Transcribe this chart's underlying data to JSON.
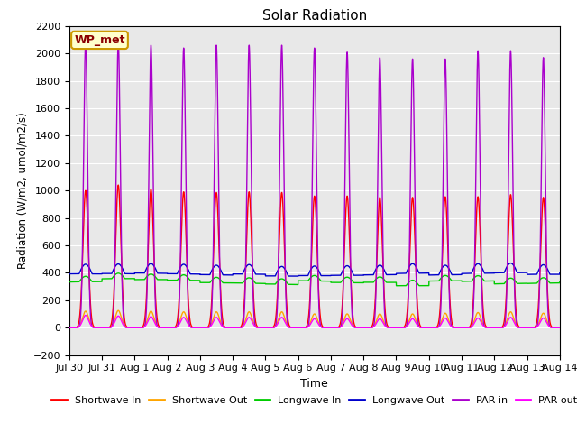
{
  "title": "Solar Radiation",
  "ylabel": "Radiation (W/m2, umol/m2/s)",
  "xlabel": "Time",
  "ylim": [
    -200,
    2200
  ],
  "yticks": [
    -200,
    0,
    200,
    400,
    600,
    800,
    1000,
    1200,
    1400,
    1600,
    1800,
    2000,
    2200
  ],
  "annotation": "WP_met",
  "bg_color": "#e8e8e8",
  "n_days": 15,
  "xtick_labels": [
    "Jul 30",
    "Jul 31",
    "Aug 1",
    "Aug 2",
    "Aug 3",
    "Aug 4",
    "Aug 5",
    "Aug 6",
    "Aug 7",
    "Aug 8",
    "Aug 9",
    "Aug 10",
    "Aug 11",
    "Aug 12",
    "Aug 13",
    "Aug 14"
  ],
  "legend_colors": [
    "#ff0000",
    "#ffa500",
    "#00cc00",
    "#0000cc",
    "#aa00cc",
    "#ff00ff"
  ],
  "legend_labels": [
    "Shortwave In",
    "Shortwave Out",
    "Longwave In",
    "Longwave Out",
    "PAR in",
    "PAR out"
  ]
}
